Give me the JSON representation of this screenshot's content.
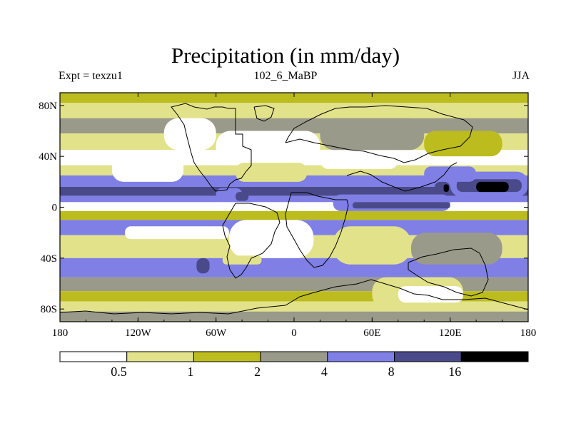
{
  "chart_data": {
    "type": "heatmap",
    "title": "Precipitation (in mm/day)",
    "subtitle_left": "Expt = texzu1",
    "subtitle_center": "102_6_MaBP",
    "subtitle_right": "JJA",
    "xlabel": "",
    "ylabel": "",
    "xlim": [
      -180,
      180
    ],
    "ylim": [
      -90,
      90
    ],
    "xticks": [
      {
        "value": -180,
        "label": "180"
      },
      {
        "value": -120,
        "label": "120W"
      },
      {
        "value": -60,
        "label": "60W"
      },
      {
        "value": 0,
        "label": "0"
      },
      {
        "value": 60,
        "label": "60E"
      },
      {
        "value": 120,
        "label": "120E"
      },
      {
        "value": 180,
        "label": "180"
      }
    ],
    "yticks": [
      {
        "value": 80,
        "label": "80N"
      },
      {
        "value": 40,
        "label": "40N"
      },
      {
        "value": 0,
        "label": "0"
      },
      {
        "value": -40,
        "label": "40S"
      },
      {
        "value": -80,
        "label": "80S"
      }
    ],
    "colorbar": {
      "levels": [
        0.5,
        1,
        2,
        4,
        8,
        16
      ],
      "labels": [
        "0.5",
        "1",
        "2",
        "4",
        "8",
        "16"
      ],
      "colors": [
        "#ffffff",
        "#e2e28a",
        "#bcbc1e",
        "#9a9a8a",
        "#7f7fe6",
        "#4a4a8a",
        "#000000"
      ]
    },
    "zonal_bands": [
      {
        "lat_min": 82,
        "lat_max": 90,
        "level": 2
      },
      {
        "lat_min": 70,
        "lat_max": 82,
        "level": 1
      },
      {
        "lat_min": 58,
        "lat_max": 70,
        "level": 3
      },
      {
        "lat_min": 45,
        "lat_max": 58,
        "level": 1
      },
      {
        "lat_min": 33,
        "lat_max": 45,
        "level": 0
      },
      {
        "lat_min": 25,
        "lat_max": 33,
        "level": 1
      },
      {
        "lat_min": 16,
        "lat_max": 25,
        "level": 4
      },
      {
        "lat_min": 9,
        "lat_max": 16,
        "level": 5
      },
      {
        "lat_min": 4,
        "lat_max": 9,
        "level": 4
      },
      {
        "lat_min": -3,
        "lat_max": 4,
        "level": 0
      },
      {
        "lat_min": -10,
        "lat_max": -3,
        "level": 2
      },
      {
        "lat_min": -22,
        "lat_max": -10,
        "level": 4
      },
      {
        "lat_min": -40,
        "lat_max": -22,
        "level": 1
      },
      {
        "lat_min": -55,
        "lat_max": -40,
        "level": 4
      },
      {
        "lat_min": -66,
        "lat_max": -55,
        "level": 3
      },
      {
        "lat_min": -74,
        "lat_max": -66,
        "level": 2
      },
      {
        "lat_min": -82,
        "lat_max": -74,
        "level": 1
      },
      {
        "lat_min": -90,
        "lat_max": -82,
        "level": 3
      }
    ],
    "regions": [
      {
        "lon_min": -140,
        "lon_max": -85,
        "lat_min": 20,
        "lat_max": 40,
        "level": 0
      },
      {
        "lon_min": -100,
        "lon_max": -60,
        "lat_min": 45,
        "lat_max": 70,
        "level": 0
      },
      {
        "lon_min": -60,
        "lon_max": 20,
        "lat_min": 35,
        "lat_max": 60,
        "level": 0
      },
      {
        "lon_min": 20,
        "lon_max": 80,
        "lat_min": 30,
        "lat_max": 45,
        "level": 0
      },
      {
        "lon_min": -45,
        "lon_max": 10,
        "lat_min": 20,
        "lat_max": 35,
        "level": 1
      },
      {
        "lon_min": 20,
        "lon_max": 100,
        "lat_min": 45,
        "lat_max": 70,
        "level": 3
      },
      {
        "lon_min": 100,
        "lon_max": 160,
        "lat_min": 40,
        "lat_max": 60,
        "level": 2
      },
      {
        "lon_min": 120,
        "lon_max": 180,
        "lat_min": 8,
        "lat_max": 28,
        "level": 4
      },
      {
        "lon_min": 125,
        "lon_max": 175,
        "lat_min": 12,
        "lat_max": 22,
        "level": 5
      },
      {
        "lon_min": 140,
        "lon_max": 165,
        "lat_min": 12,
        "lat_max": 20,
        "level": 6
      },
      {
        "lon_min": 108,
        "lon_max": 120,
        "lat_min": 10,
        "lat_max": 20,
        "level": 5
      },
      {
        "lon_min": 115,
        "lon_max": 119,
        "lat_min": 12,
        "lat_max": 18,
        "level": 6
      },
      {
        "lon_min": 30,
        "lon_max": 120,
        "lat_min": -3,
        "lat_max": 10,
        "level": 4
      },
      {
        "lon_min": 45,
        "lon_max": 120,
        "lat_min": -1,
        "lat_max": 4,
        "level": 5
      },
      {
        "lon_min": 100,
        "lon_max": 140,
        "lat_min": 20,
        "lat_max": 32,
        "level": 4
      },
      {
        "lon_min": -50,
        "lon_max": 15,
        "lat_min": -40,
        "lat_max": -10,
        "level": 0
      },
      {
        "lon_min": -130,
        "lon_max": -50,
        "lat_min": -25,
        "lat_max": -15,
        "level": 0
      },
      {
        "lon_min": -55,
        "lon_max": -25,
        "lat_min": -45,
        "lat_max": -38,
        "level": 1
      },
      {
        "lon_min": 30,
        "lon_max": 90,
        "lat_min": -45,
        "lat_max": -15,
        "level": 1
      },
      {
        "lon_min": 90,
        "lon_max": 160,
        "lat_min": -45,
        "lat_max": -20,
        "level": 3
      },
      {
        "lon_min": 60,
        "lon_max": 130,
        "lat_min": -80,
        "lat_max": -55,
        "level": 1
      },
      {
        "lon_min": 80,
        "lon_max": 130,
        "lat_min": -75,
        "lat_max": -62,
        "level": 0
      },
      {
        "lon_min": -60,
        "lon_max": -40,
        "lat_min": 5,
        "lat_max": 15,
        "level": 4
      },
      {
        "lon_min": -45,
        "lon_max": -35,
        "lat_min": 5,
        "lat_max": 12,
        "level": 5
      },
      {
        "lon_min": -75,
        "lon_max": -65,
        "lat_min": -52,
        "lat_max": -40,
        "level": 5
      }
    ]
  }
}
